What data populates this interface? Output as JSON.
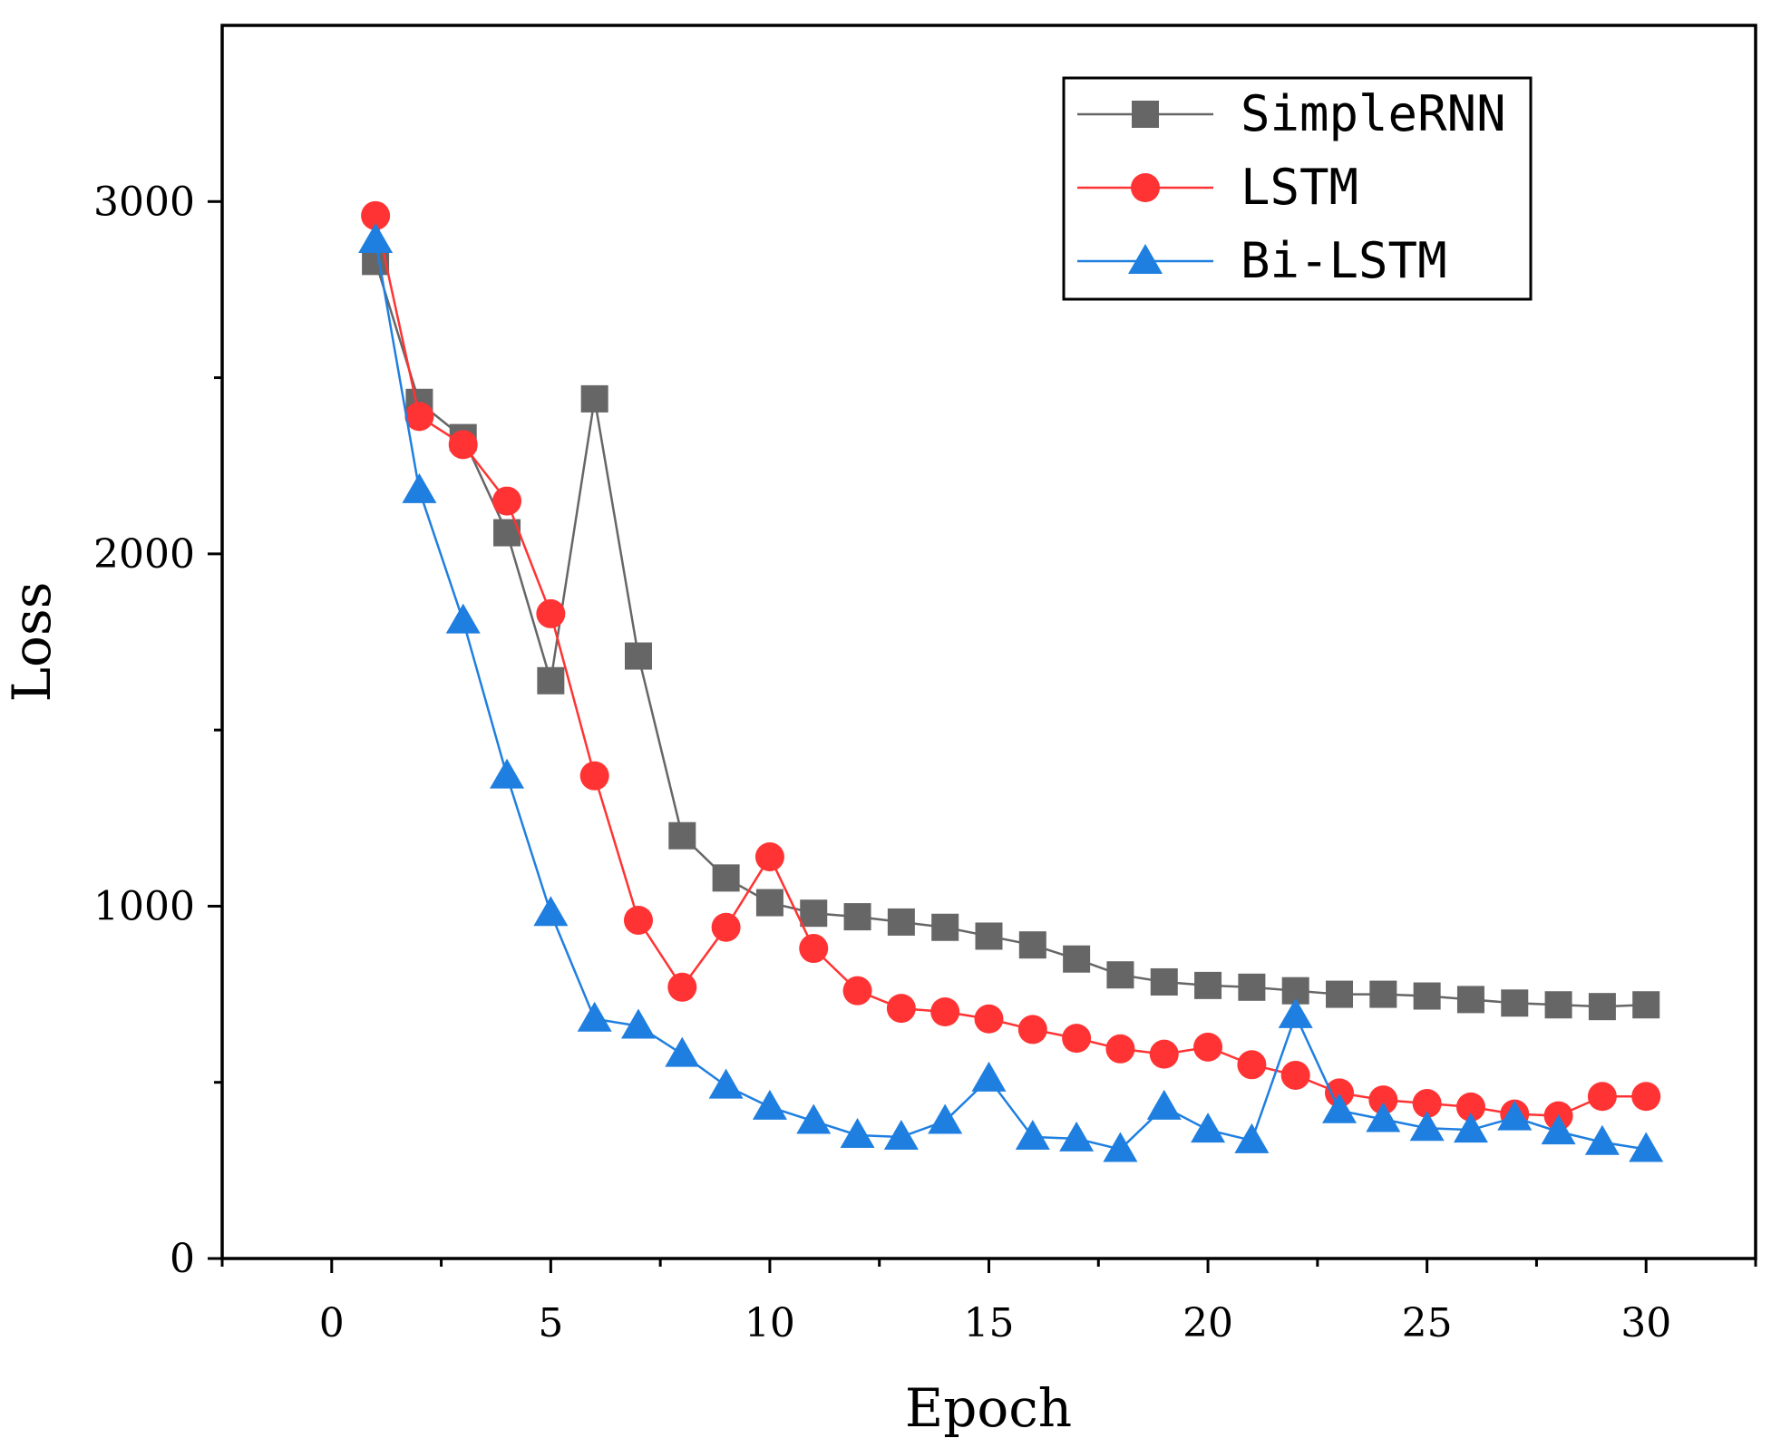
{
  "chart_data": {
    "type": "line",
    "title": "",
    "xlabel": "Epoch",
    "ylabel": "Loss",
    "xlim": [
      -2.5,
      32.5
    ],
    "ylim": [
      0,
      3500
    ],
    "xticks": [
      0,
      5,
      10,
      15,
      20,
      25,
      30
    ],
    "yticks": [
      0,
      1000,
      2000,
      3000
    ],
    "x_tick_labels": [
      "0",
      "5",
      "10",
      "15",
      "20",
      "25",
      "30"
    ],
    "y_tick_labels": [
      "0",
      "1000",
      "2000",
      "3000"
    ],
    "grid": false,
    "legend_position": "top-right",
    "x": [
      1,
      2,
      3,
      4,
      5,
      6,
      7,
      8,
      9,
      10,
      11,
      12,
      13,
      14,
      15,
      16,
      17,
      18,
      19,
      20,
      21,
      22,
      23,
      24,
      25,
      26,
      27,
      28,
      29,
      30
    ],
    "series": [
      {
        "name": "SimpleRNN",
        "color": "#666666",
        "marker": "square",
        "values": [
          2830,
          2430,
          2330,
          2060,
          1640,
          2440,
          1710,
          1200,
          1080,
          1010,
          980,
          970,
          955,
          940,
          915,
          890,
          850,
          805,
          785,
          775,
          770,
          760,
          750,
          750,
          745,
          735,
          725,
          720,
          715,
          720
        ]
      },
      {
        "name": "LSTM",
        "color": "#ff3333",
        "marker": "circle",
        "values": [
          2960,
          2390,
          2310,
          2150,
          1830,
          1370,
          960,
          770,
          940,
          1140,
          880,
          760,
          710,
          700,
          680,
          650,
          625,
          595,
          580,
          600,
          550,
          520,
          470,
          450,
          440,
          430,
          410,
          405,
          460,
          460
        ]
      },
      {
        "name": "Bi-LSTM",
        "color": "#1f7fe0",
        "marker": "triangle",
        "values": [
          2890,
          2180,
          1810,
          1370,
          980,
          680,
          660,
          580,
          490,
          430,
          390,
          350,
          345,
          390,
          510,
          345,
          340,
          310,
          430,
          365,
          335,
          690,
          420,
          395,
          370,
          365,
          400,
          360,
          330,
          310
        ]
      }
    ]
  }
}
